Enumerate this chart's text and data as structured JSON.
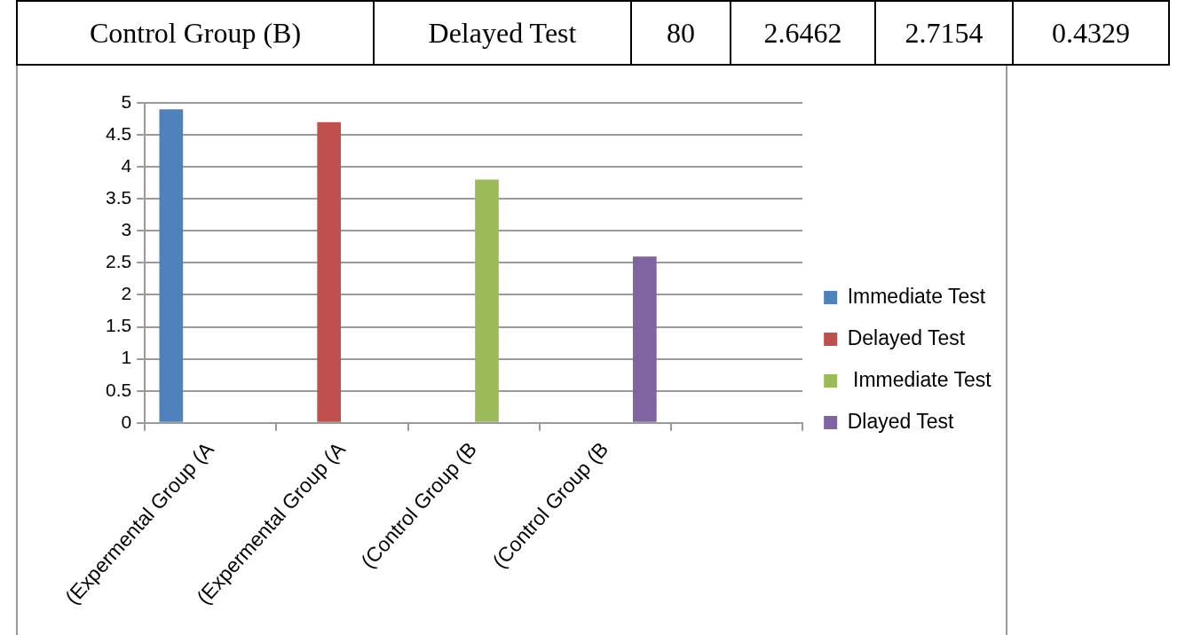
{
  "chart_data": {
    "type": "bar",
    "annotations": [
      "Control Group (B)",
      "Delayed Test",
      "80",
      "2.6462",
      "2.7154",
      "0.4329"
    ],
    "categories": [
      "(Expermental Group (A",
      "(Expermental Group (A",
      "(Control Group (B",
      "(Control Group (B",
      null
    ],
    "series": [
      {
        "name": "Immediate Test",
        "color": "#4f81bd",
        "values": [
          4.9,
          0,
          0,
          null,
          null
        ]
      },
      {
        "name": "Delayed Test",
        "color": "#c0504d",
        "values": [
          0,
          4.7,
          0,
          null,
          null
        ]
      },
      {
        "name": " Immediate Test",
        "color": "#9bbb59",
        "values": [
          0,
          0,
          3.8,
          null,
          null
        ]
      },
      {
        "name": "Dlayed Test",
        "color": "#8064a2",
        "values": [
          null,
          null,
          null,
          2.6,
          null
        ]
      }
    ],
    "ylim": [
      0,
      5
    ],
    "yticks": [
      0,
      0.5,
      1,
      1.5,
      2,
      2.5,
      3,
      3.5,
      4,
      4.5,
      5
    ],
    "grid": "y",
    "legend": "right"
  }
}
